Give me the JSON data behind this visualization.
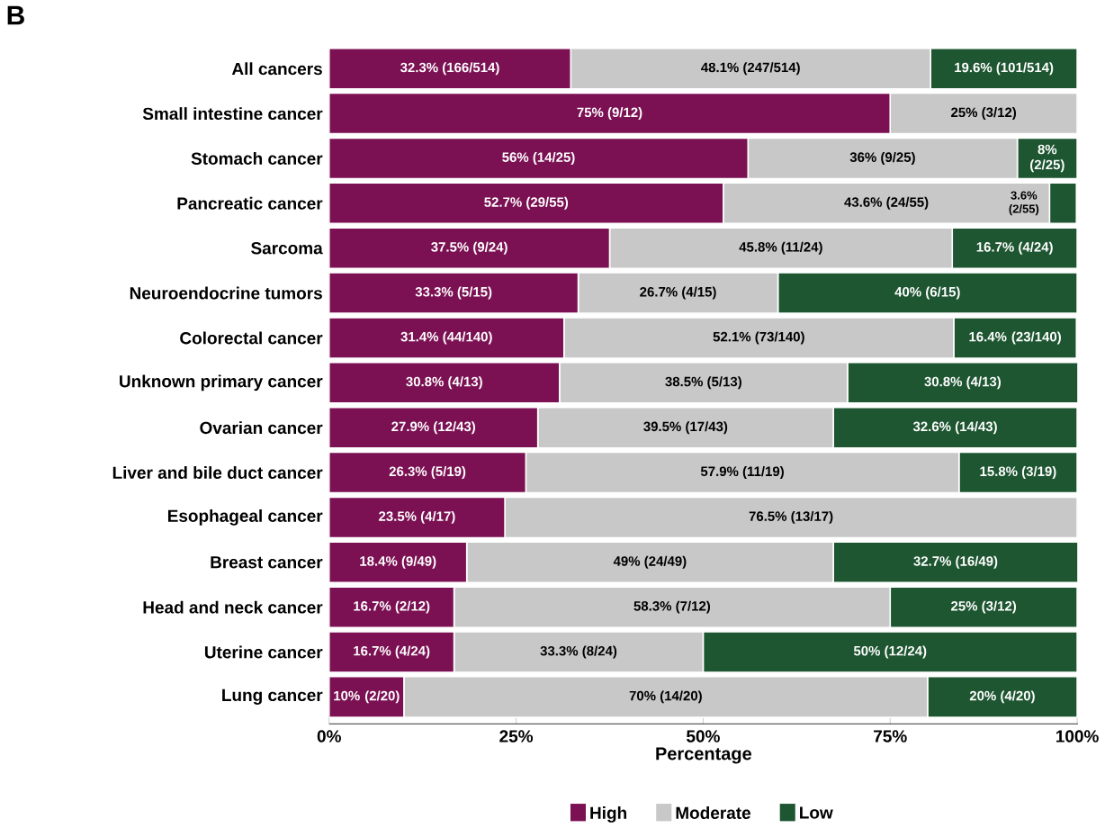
{
  "chart_data": {
    "type": "bar",
    "title": "B",
    "orientation": "horizontal",
    "stacked": true,
    "legend": "bottom",
    "xlabel": "Percentage",
    "categories": [
      "All cancers",
      "Small intestine cancer",
      "Stomach cancer",
      "Pancreatic cancer",
      "Sarcoma",
      "Neuroendocrine tumors",
      "Colorectal cancer",
      "Unknown primary cancer",
      "Ovarian cancer",
      "Liver and bile duct cancer",
      "Esophageal cancer",
      "Breast cancer",
      "Head and neck cancer",
      "Uterine cancer",
      "Lung cancer"
    ],
    "xlim": [
      0,
      100.1
    ],
    "xticks": [
      {
        "value": 0,
        "label": "0%"
      },
      {
        "value": 25,
        "label": "25%"
      },
      {
        "value": 50,
        "label": "50%"
      },
      {
        "value": 75,
        "label": "75%"
      },
      {
        "value": 100,
        "label": "100%"
      }
    ],
    "series": [
      {
        "name": "High",
        "color": "#7b1153",
        "values": [
          32.3,
          75,
          56,
          52.7,
          37.5,
          33.3,
          31.4,
          30.8,
          27.9,
          26.3,
          23.5,
          18.4,
          16.7,
          16.7,
          10
        ],
        "value_labels": [
          "32.3% (166/514)",
          "75% (9/12)",
          "56% (14/25)",
          "52.7% (29/55)",
          "37.5% (9/24)",
          "33.3% (5/15)",
          "31.4% (44/140)",
          "30.8% (4/13)",
          "27.9% (12/43)",
          "26.3% (5/19)",
          "23.5% (4/17)",
          "18.4% (9/49)",
          "16.7% (2/12)",
          "16.7% (4/24)",
          "10% (2/20)"
        ]
      },
      {
        "name": "Moderate",
        "color": "#c8c8c8",
        "values": [
          48.1,
          25,
          36,
          43.6,
          45.8,
          26.7,
          52.1,
          38.5,
          39.5,
          57.9,
          76.5,
          49,
          58.3,
          33.3,
          70
        ],
        "value_labels": [
          "48.1% (247/514)",
          "25% (3/12)",
          "36% (9/25)",
          "43.6% (24/55)",
          "45.8% (11/24)",
          "26.7% (4/15)",
          "52.1% (73/140)",
          "38.5% (5/13)",
          "39.5% (17/43)",
          "57.9% (11/19)",
          "76.5% (13/17)",
          "49% (24/49)",
          "58.3% (7/12)",
          "33.3% (8/24)",
          "70% (14/20)"
        ]
      },
      {
        "name": "Low",
        "color": "#1e5631",
        "values": [
          19.6,
          0,
          8,
          3.6,
          16.7,
          40,
          16.4,
          30.8,
          32.6,
          15.8,
          0,
          32.7,
          25,
          50,
          20
        ],
        "value_labels": [
          "19.6% (101/514)",
          null,
          "8% (2/25)",
          "3.6% (2/55)",
          "16.7% (4/24)",
          "40% (6/15)",
          "16.4% (23/140)",
          "30.8% (4/13)",
          "32.6% (14/43)",
          "15.8% (3/19)",
          null,
          "32.7% (16/49)",
          "25% (3/12)",
          "50% (12/24)",
          "20% (4/20)"
        ]
      }
    ]
  }
}
